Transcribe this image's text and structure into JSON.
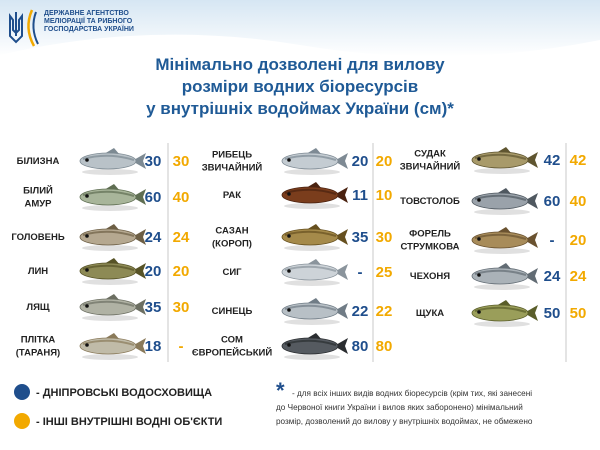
{
  "header": {
    "org": [
      "ДЕРЖАВНЕ АГЕНТСТВО",
      "МЕЛІОРАЦІЇ ТА РИБНОГО",
      "ГОСПОДАРСТВА УКРАЇНИ"
    ]
  },
  "title": [
    "Мінімально дозволені для вилову",
    "розміри водних біоресурсів",
    "у внутрішніх водоймах України (см)*"
  ],
  "columns": [
    {
      "rows": [
        {
          "name": [
            "БІЛИЗНА"
          ],
          "dnipro": 30,
          "other": 30
        },
        {
          "name": [
            "БІЛИЙ",
            "АМУР"
          ],
          "dnipro": 60,
          "other": 40
        },
        {
          "name": [
            "ГОЛОВЕНЬ"
          ],
          "dnipro": 24,
          "other": 24
        },
        {
          "name": [
            "ЛИН"
          ],
          "dnipro": 20,
          "other": 20
        },
        {
          "name": [
            "ЛЯЩ"
          ],
          "dnipro": 35,
          "other": 30
        },
        {
          "name": [
            "ПЛІТКА",
            "(ТАРАНЯ)"
          ],
          "dnipro": 18,
          "other": "-"
        }
      ]
    },
    {
      "rows": [
        {
          "name": [
            "РИБЕЦЬ",
            "ЗВИЧАЙНИЙ"
          ],
          "dnipro": 20,
          "other": 20
        },
        {
          "name": [
            "РАК"
          ],
          "dnipro": 11,
          "other": 10
        },
        {
          "name": [
            "САЗАН",
            "(КОРОП)"
          ],
          "dnipro": 35,
          "other": 30
        },
        {
          "name": [
            "СИГ"
          ],
          "dnipro": "-",
          "other": 25
        },
        {
          "name": [
            "СИНЕЦЬ"
          ],
          "dnipro": 22,
          "other": 22
        },
        {
          "name": [
            "СОМ",
            "ЄВРОПЕЙСЬКИЙ"
          ],
          "dnipro": 80,
          "other": 80
        }
      ]
    },
    {
      "rows": [
        {
          "name": [
            "СУДАК",
            "ЗВИЧАЙНИЙ"
          ],
          "dnipro": 42,
          "other": 42
        },
        {
          "name": [
            "ТОВСТОЛОБ"
          ],
          "dnipro": 60,
          "other": 40
        },
        {
          "name": [
            "ФОРЕЛЬ",
            "СТРУМКОВА"
          ],
          "dnipro": "-",
          "other": 20
        },
        {
          "name": [
            "ЧЕХОНЯ"
          ],
          "dnipro": 24,
          "other": 24
        },
        {
          "name": [
            "ЩУКА"
          ],
          "dnipro": 50,
          "other": 50
        }
      ]
    }
  ],
  "legend": [
    "- ДНІПРОВСЬКІ ВОДОСХОВИЩА",
    "- ІНШІ ВНУТРІШНІ ВОДНІ ОБ'ЄКТИ"
  ],
  "footnote": {
    "mark": "*",
    "lines": [
      "- для всіх інших видів водних біоресурсів (крім тих, які занесені",
      "до Червоної книги України і вилов яких заборонено) мінімальний",
      "розмір, дозволений до вилову у внутрішніх водоймах, не обмежено"
    ]
  }
}
